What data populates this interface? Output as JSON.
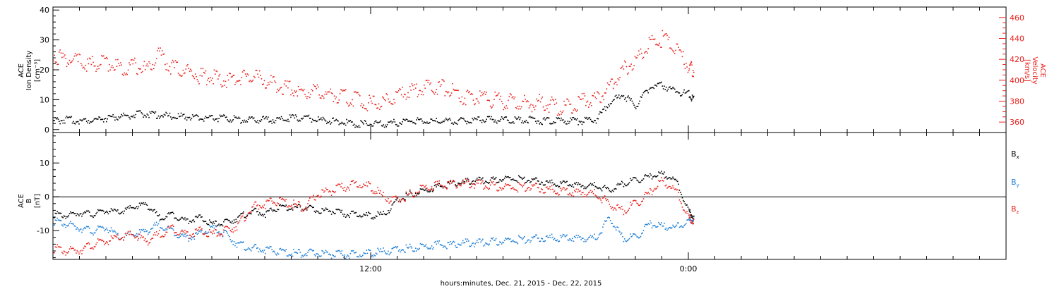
{
  "chart_data": [
    {
      "type": "scatter",
      "panel": "top",
      "xlabel": "hours:minutes, Dec. 21, 2015 - Dec. 22, 2015",
      "x_unit": "hours since Dec. 21, 2015 00:00",
      "xlim": [
        0,
        36
      ],
      "x_major_ticks": [
        {
          "x": 12,
          "label": "12:00"
        },
        {
          "x": 24,
          "label": "0:00"
        }
      ],
      "left_axis": {
        "title_lines": [
          "ACE",
          "Ion Density",
          "[cm⁻³]"
        ],
        "ylim": [
          -1,
          41
        ],
        "ticks": [
          0,
          10,
          20,
          30,
          40
        ],
        "color": "#000000"
      },
      "right_axis": {
        "title_lines": [
          "ACE",
          "Velocity",
          "[km/s]"
        ],
        "ylim": [
          350,
          470
        ],
        "ticks": [
          360,
          380,
          400,
          420,
          440,
          460
        ],
        "color": "#e8231e"
      },
      "series": [
        {
          "name": "",
          "axis": "left",
          "color": "#000000",
          "x": [
            0,
            0.5,
            1,
            1.5,
            2,
            2.5,
            3,
            3.5,
            4,
            4.5,
            5,
            5.5,
            6,
            6.5,
            7,
            7.5,
            8,
            8.5,
            9,
            9.5,
            10,
            10.5,
            11,
            11.5,
            12,
            12.5,
            13,
            13.5,
            14,
            14.5,
            15,
            15.5,
            16,
            16.5,
            17,
            17.5,
            18,
            18.5,
            19,
            19.5,
            20,
            20.5,
            21,
            21.5,
            22,
            22.5,
            23,
            23.5,
            24,
            24.2
          ],
          "values": [
            3,
            3.5,
            3,
            3.5,
            4,
            4.5,
            5,
            5.5,
            5,
            4.5,
            4.5,
            4,
            4,
            4,
            3.5,
            3.5,
            3.5,
            3.5,
            4,
            4,
            3.5,
            3,
            2.5,
            2,
            2,
            2,
            2.5,
            3,
            3,
            3,
            3,
            3,
            3.5,
            3.5,
            3.5,
            3.5,
            3.5,
            3,
            3,
            3,
            3,
            3.5,
            9,
            12,
            8,
            14,
            15,
            13,
            12,
            10
          ]
        },
        {
          "name": "",
          "axis": "right",
          "color": "#e8231e",
          "x": [
            0,
            0.5,
            1,
            1.5,
            2,
            2.5,
            3,
            3.5,
            4,
            4.5,
            5,
            5.5,
            6,
            6.5,
            7,
            7.5,
            8,
            8.5,
            9,
            9.5,
            10,
            10.5,
            11,
            11.5,
            12,
            12.5,
            13,
            13.5,
            14,
            14.5,
            15,
            15.5,
            16,
            16.5,
            17,
            17.5,
            18,
            18.5,
            19,
            19.5,
            20,
            20.5,
            21,
            21.5,
            22,
            22.5,
            23,
            23.5,
            24,
            24.2
          ],
          "values": [
            425,
            420,
            418,
            415,
            418,
            412,
            415,
            410,
            425,
            412,
            410,
            405,
            403,
            400,
            402,
            405,
            400,
            395,
            392,
            390,
            388,
            386,
            384,
            382,
            378,
            380,
            385,
            390,
            392,
            395,
            390,
            385,
            385,
            382,
            380,
            380,
            378,
            380,
            375,
            375,
            380,
            382,
            395,
            410,
            420,
            435,
            440,
            430,
            415,
            410
          ]
        }
      ]
    },
    {
      "type": "scatter",
      "panel": "bottom",
      "xlabel": "hours:minutes, Dec. 21, 2015 - Dec. 22, 2015",
      "x_unit": "hours since Dec. 21, 2015 00:00",
      "xlim": [
        0,
        36
      ],
      "x_major_ticks": [
        {
          "x": 12,
          "label": "12:00"
        },
        {
          "x": 24,
          "label": "0:00"
        }
      ],
      "left_axis": {
        "title_lines": [
          "ACE",
          "B",
          "[nT]"
        ],
        "ylim": [
          -18.5,
          19
        ],
        "ticks": [
          -10,
          0,
          10
        ]
      },
      "zero_line": true,
      "series": [
        {
          "name": "B",
          "subscript": "x",
          "color": "#000000",
          "x": [
            0,
            0.5,
            1,
            1.5,
            2,
            2.5,
            3,
            3.5,
            4,
            4.5,
            5,
            5.5,
            6,
            6.5,
            7,
            7.5,
            8,
            8.5,
            9,
            9.5,
            10,
            10.5,
            11,
            11.5,
            12,
            12.5,
            13,
            13.5,
            14,
            14.5,
            15,
            15.5,
            16,
            16.5,
            17,
            17.5,
            18,
            18.5,
            19,
            19.5,
            20,
            20.5,
            21,
            21.5,
            22,
            22.5,
            23,
            23.5,
            24,
            24.2
          ],
          "values": [
            -5,
            -5.5,
            -4.5,
            -5,
            -4,
            -4.5,
            -3,
            -2,
            -6,
            -5,
            -7,
            -6,
            -8,
            -7.5,
            -6,
            -4,
            -5,
            -3,
            -3,
            -3,
            -4,
            -4,
            -5,
            -5,
            -5.5,
            -5,
            -1,
            1,
            2,
            3,
            4,
            4.5,
            5,
            5,
            5.5,
            5.5,
            5,
            4.5,
            4,
            4,
            3.5,
            3.5,
            2,
            4,
            5,
            6,
            7,
            5,
            -4,
            -6
          ]
        },
        {
          "name": "B",
          "subscript": "y",
          "color": "#1e7fd6",
          "x": [
            0,
            0.5,
            1,
            1.5,
            2,
            2.5,
            3,
            3.5,
            4,
            4.5,
            5,
            5.5,
            6,
            6.5,
            7,
            7.5,
            8,
            8.5,
            9,
            9.5,
            10,
            10.5,
            11,
            11.5,
            12,
            12.5,
            13,
            13.5,
            14,
            14.5,
            15,
            15.5,
            16,
            16.5,
            17,
            17.5,
            18,
            18.5,
            19,
            19.5,
            20,
            20.5,
            21,
            21.5,
            22,
            22.5,
            23,
            23.5,
            24,
            24.2
          ],
          "values": [
            -7,
            -8,
            -9,
            -10,
            -9,
            -12,
            -11,
            -10,
            -8,
            -10,
            -12,
            -11,
            -9,
            -11,
            -14,
            -15,
            -15.5,
            -16,
            -16.5,
            -16.5,
            -16.5,
            -16.8,
            -17,
            -16.8,
            -16.5,
            -16,
            -15.5,
            -15,
            -14.5,
            -14,
            -14,
            -13.5,
            -13.5,
            -13,
            -13,
            -12.5,
            -12.5,
            -12,
            -12,
            -12,
            -12,
            -12,
            -6,
            -12,
            -12,
            -8,
            -8.5,
            -9,
            -7,
            -6
          ]
        },
        {
          "name": "B",
          "subscript": "z",
          "color": "#e8231e",
          "x": [
            0,
            0.5,
            1,
            1.5,
            2,
            2.5,
            3,
            3.5,
            4,
            4.5,
            5,
            5.5,
            6,
            6.5,
            7,
            7.5,
            8,
            8.5,
            9,
            9.5,
            10,
            10.5,
            11,
            11.5,
            12,
            12.5,
            13,
            13.5,
            14,
            14.5,
            15,
            15.5,
            16,
            16.5,
            17,
            17.5,
            18,
            18.5,
            19,
            19.5,
            20,
            20.5,
            21,
            21.5,
            22,
            22.5,
            23,
            23.5,
            24,
            24.2
          ],
          "values": [
            -15,
            -16,
            -15.5,
            -14,
            -13,
            -12,
            -11,
            -13,
            -11,
            -9,
            -11,
            -10,
            -11,
            -10,
            -8,
            -3,
            -2,
            -1,
            -2,
            -3,
            1,
            2,
            3,
            4,
            3,
            0,
            -1,
            1,
            3,
            3.5,
            4,
            4,
            4,
            3.5,
            3,
            3,
            3,
            2.5,
            2,
            1.5,
            1.5,
            1,
            -2,
            -4,
            -2,
            1,
            5,
            2,
            -6,
            -7
          ]
        }
      ]
    }
  ]
}
